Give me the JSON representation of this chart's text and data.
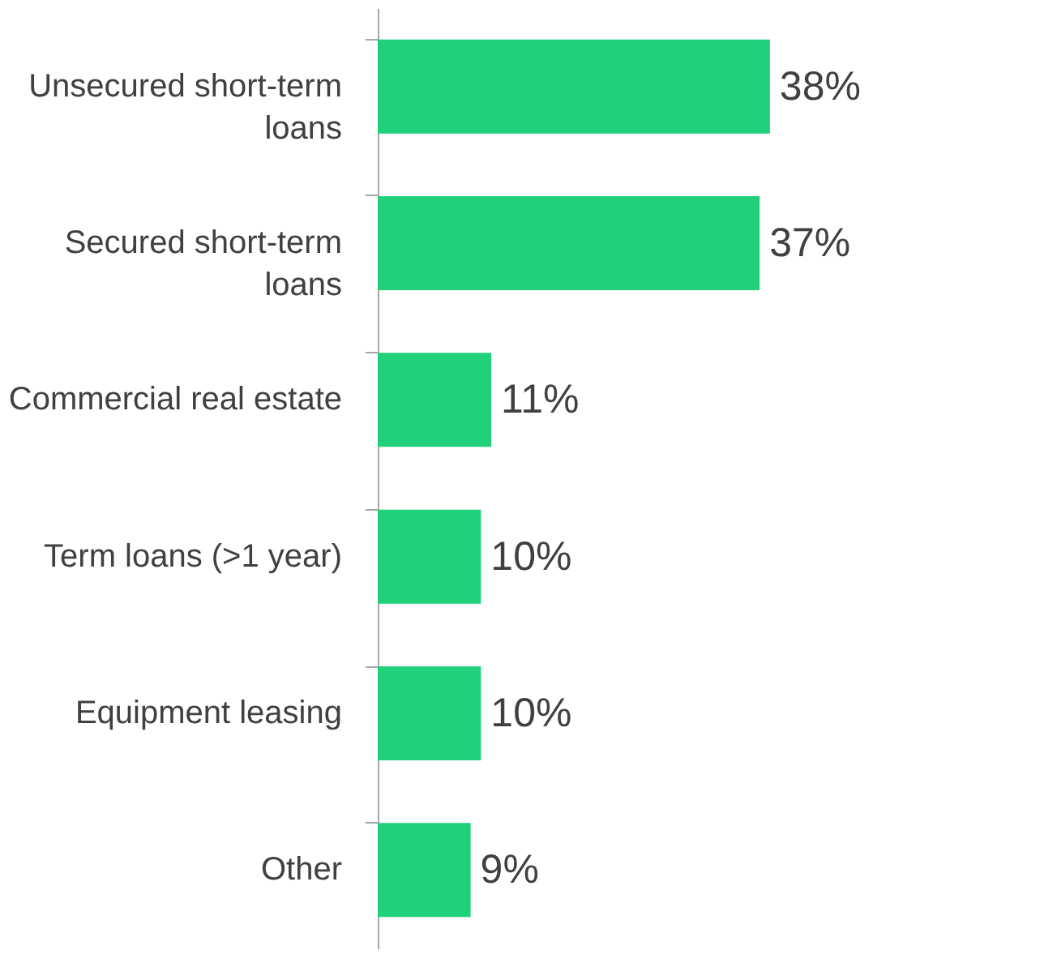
{
  "chart_data": {
    "type": "bar",
    "orientation": "horizontal",
    "categories": [
      "Unsecured short-term loans",
      "Secured short-term loans",
      "Commercial real estate",
      "Term loans (>1 year)",
      "Equipment leasing",
      "Other"
    ],
    "values": [
      38,
      37,
      11,
      10,
      10,
      9
    ],
    "value_labels": [
      "38%",
      "37%",
      "11%",
      "10%",
      "10%",
      "9%"
    ],
    "color": "#21d07a",
    "grid": false
  }
}
